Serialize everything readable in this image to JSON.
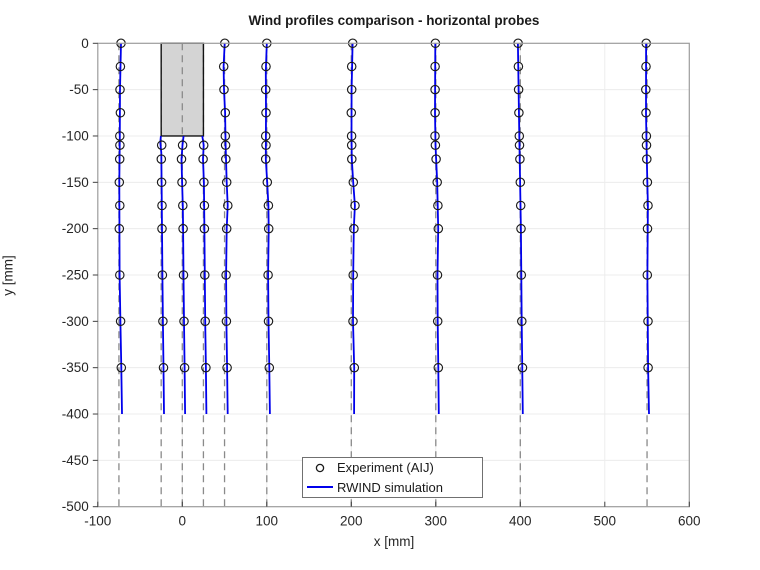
{
  "title": "Wind profiles comparison - horizontal probes",
  "axes": {
    "xlabel": "x [mm]",
    "ylabel": "y [mm]"
  },
  "legend": {
    "items": [
      {
        "label": "Experiment (AIJ)",
        "marker": "circle"
      },
      {
        "label": "RWIND simulation",
        "marker": "blue-line"
      }
    ]
  },
  "colors": {
    "simulation_line": "#0000eb",
    "experiment_marker": "#1a1a1a",
    "building_fill": "#d4d4d4",
    "building_edge": "#141414",
    "probe_guide": "#8a8a8a",
    "grid": "#ececec",
    "axis_box": "#9c9c9c",
    "tick_mark": "#404040",
    "tick_text": "#262626"
  },
  "chart_data": {
    "type": "line",
    "title": "Wind profiles comparison - horizontal probes",
    "xlabel": "x [mm]",
    "ylabel": "y [mm]",
    "xlim": [
      -100,
      600
    ],
    "ylim": [
      -500,
      0
    ],
    "x_ticks": [
      -100,
      0,
      100,
      200,
      300,
      400,
      500,
      600
    ],
    "y_ticks": [
      0,
      -50,
      -100,
      -150,
      -200,
      -250,
      -300,
      -350,
      -400,
      -450,
      -500
    ],
    "grid": true,
    "legend_position": "south-inside",
    "series": [
      "Experiment (AIJ)",
      "RWIND simulation"
    ],
    "units": "mm",
    "building": {
      "x_min": -25,
      "x_max": 25,
      "y_min": -100,
      "y_max": 0
    },
    "probe_guide_y_range": [
      0,
      -500
    ],
    "simulation_line_y_end": -400,
    "probes": [
      {
        "x": -75,
        "circle_y": [
          0,
          -25,
          -50,
          -75,
          -100,
          -110,
          -125,
          -150,
          -175,
          -200,
          -250,
          -300,
          -350
        ],
        "circle_dx": [
          2.5,
          1.7,
          1.3,
          1.7,
          1.0,
          1.2,
          0.9,
          0.5,
          1.0,
          0.5,
          1.0,
          2.0,
          2.8
        ],
        "line": [
          [
            0,
            2.5
          ],
          [
            -50,
            1.3
          ],
          [
            -100,
            1.0
          ],
          [
            -150,
            0.4
          ],
          [
            -250,
            0.8
          ],
          [
            -300,
            1.8
          ],
          [
            -350,
            2.8
          ],
          [
            -400,
            3.6
          ]
        ]
      },
      {
        "x": -25,
        "circle_y": [
          -110,
          -125,
          -150,
          -175,
          -200,
          -250,
          -300,
          -350
        ],
        "circle_dx": [
          0.6,
          0.2,
          0.5,
          1.0,
          1.0,
          1.5,
          2.0,
          2.8
        ],
        "line": [
          [
            -100,
            -0.3
          ],
          [
            -107,
            -1.0
          ],
          [
            -118,
            0.2
          ],
          [
            -150,
            0.5
          ],
          [
            -200,
            1.0
          ],
          [
            -250,
            1.5
          ],
          [
            -300,
            2.0
          ],
          [
            -350,
            2.8
          ],
          [
            -400,
            3.4
          ]
        ]
      },
      {
        "x": 0,
        "circle_y": [
          -110,
          -125,
          -150,
          -175,
          -200,
          -250,
          -300,
          -350
        ],
        "circle_dx": [
          0.4,
          -1.0,
          -0.3,
          0.6,
          1.0,
          1.4,
          2.0,
          2.7
        ],
        "line": [
          [
            -100,
            1.5
          ],
          [
            -110,
            0.2
          ],
          [
            -125,
            -0.9
          ],
          [
            -150,
            -0.2
          ],
          [
            -175,
            0.6
          ],
          [
            -200,
            1.0
          ],
          [
            -250,
            1.4
          ],
          [
            -300,
            2.0
          ],
          [
            -350,
            2.7
          ],
          [
            -400,
            3.3
          ]
        ]
      },
      {
        "x": 25,
        "circle_y": [
          -110,
          -125,
          -150,
          -175,
          -200,
          -250,
          -300,
          -350
        ],
        "circle_dx": [
          0.3,
          -0.4,
          0.6,
          1.2,
          1.2,
          1.6,
          2.1,
          2.9
        ],
        "line": [
          [
            -100,
            -1.3
          ],
          [
            -110,
            0.3
          ],
          [
            -125,
            -0.5
          ],
          [
            -150,
            0.6
          ],
          [
            -200,
            1.2
          ],
          [
            -250,
            1.6
          ],
          [
            -300,
            2.1
          ],
          [
            -350,
            2.9
          ],
          [
            -400,
            3.5
          ]
        ]
      },
      {
        "x": 50,
        "circle_y": [
          0,
          -25,
          -50,
          -75,
          -100,
          -110,
          -125,
          -150,
          -175,
          -200,
          -250,
          -300,
          -350
        ],
        "circle_dx": [
          0.3,
          -1.0,
          -0.6,
          0.9,
          0.9,
          1.3,
          1.5,
          2.6,
          3.8,
          2.6,
          1.8,
          2.2,
          3.0
        ],
        "line": [
          [
            0,
            0.2
          ],
          [
            -25,
            -1.1
          ],
          [
            -50,
            -0.6
          ],
          [
            -75,
            0.7
          ],
          [
            -110,
            1.2
          ],
          [
            -150,
            2.5
          ],
          [
            -175,
            3.7
          ],
          [
            -200,
            2.6
          ],
          [
            -250,
            1.8
          ],
          [
            -300,
            2.2
          ],
          [
            -350,
            3.0
          ],
          [
            -400,
            3.7
          ]
        ]
      },
      {
        "x": 100,
        "circle_y": [
          0,
          -25,
          -50,
          -75,
          -100,
          -110,
          -125,
          -150,
          -175,
          -200,
          -250,
          -300,
          -350
        ],
        "circle_dx": [
          0.0,
          -1.0,
          -1.3,
          -1.0,
          -1.3,
          -1.0,
          -1.3,
          0.6,
          1.9,
          2.2,
          1.5,
          2.0,
          3.0
        ],
        "line": [
          [
            0,
            0.0
          ],
          [
            -30,
            -1.2
          ],
          [
            -75,
            -1.0
          ],
          [
            -125,
            -1.2
          ],
          [
            -150,
            0.5
          ],
          [
            -175,
            1.9
          ],
          [
            -200,
            2.2
          ],
          [
            -250,
            1.5
          ],
          [
            -300,
            2.0
          ],
          [
            -350,
            3.0
          ],
          [
            -400,
            3.7
          ]
        ]
      },
      {
        "x": 200,
        "circle_y": [
          0,
          -25,
          -50,
          -75,
          -100,
          -110,
          -125,
          -150,
          -175,
          -200,
          -250,
          -300,
          -350
        ],
        "circle_dx": [
          1.6,
          0.5,
          0.5,
          0.0,
          0.3,
          0.5,
          0.6,
          2.4,
          4.4,
          3.1,
          2.3,
          2.0,
          3.5
        ],
        "line": [
          [
            0,
            1.5
          ],
          [
            -50,
            0.4
          ],
          [
            -100,
            0.2
          ],
          [
            -125,
            0.6
          ],
          [
            -150,
            2.3
          ],
          [
            -175,
            4.3
          ],
          [
            -200,
            3.0
          ],
          [
            -250,
            2.2
          ],
          [
            -300,
            2.0
          ],
          [
            -350,
            3.4
          ],
          [
            -400,
            3.3
          ]
        ]
      },
      {
        "x": 300,
        "circle_y": [
          0,
          -25,
          -50,
          -75,
          -100,
          -110,
          -125,
          -150,
          -175,
          -200,
          -250,
          -300,
          -350
        ],
        "circle_dx": [
          -0.5,
          -0.8,
          -0.8,
          -0.8,
          -0.9,
          -0.5,
          0.3,
          1.7,
          2.5,
          2.9,
          2.0,
          2.2,
          3.0
        ],
        "line": [
          [
            0,
            -0.6
          ],
          [
            -75,
            -0.9
          ],
          [
            -110,
            -0.4
          ],
          [
            -150,
            1.6
          ],
          [
            -200,
            2.8
          ],
          [
            -250,
            2.0
          ],
          [
            -300,
            2.2
          ],
          [
            -350,
            3.0
          ],
          [
            -400,
            3.6
          ]
        ]
      },
      {
        "x": 400,
        "circle_y": [
          0,
          -25,
          -50,
          -75,
          -100,
          -110,
          -125,
          -150,
          -175,
          -200,
          -250,
          -300,
          -350
        ],
        "circle_dx": [
          -2.6,
          -2.3,
          -2.0,
          -1.6,
          -1.2,
          -0.9,
          -0.5,
          0.0,
          0.5,
          0.8,
          1.2,
          1.8,
          2.6
        ],
        "line": [
          [
            0,
            -2.8
          ],
          [
            -100,
            -1.2
          ],
          [
            -200,
            0.7
          ],
          [
            -300,
            1.7
          ],
          [
            -400,
            3.0
          ]
        ]
      },
      {
        "x": 550,
        "circle_y": [
          0,
          -25,
          -50,
          -75,
          -100,
          -110,
          -125,
          -150,
          -175,
          -200,
          -250,
          -300,
          -350
        ],
        "circle_dx": [
          -1.0,
          -1.2,
          -1.5,
          -1.2,
          -0.8,
          -0.6,
          -0.3,
          0.4,
          1.1,
          0.5,
          0.3,
          1.1,
          1.2
        ],
        "line": [
          [
            0,
            -1.1
          ],
          [
            -75,
            -1.3
          ],
          [
            -125,
            -0.3
          ],
          [
            -175,
            1.0
          ],
          [
            -250,
            0.4
          ],
          [
            -350,
            1.2
          ],
          [
            -400,
            2.3
          ]
        ]
      }
    ]
  }
}
